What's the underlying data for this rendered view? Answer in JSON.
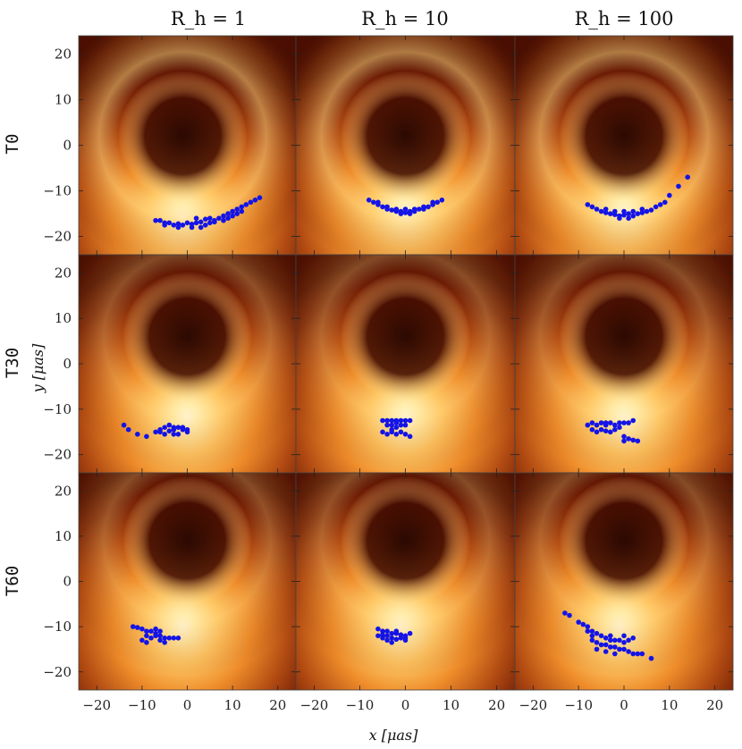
{
  "chart_data": {
    "type": "scatter",
    "title": "",
    "xlabel": "x [μas]",
    "ylabel": "y [μas]",
    "xlim": [
      -24,
      24
    ],
    "ylim": [
      -24,
      24
    ],
    "xticks": [
      -20,
      -10,
      0,
      10,
      20
    ],
    "yticks": [
      -20,
      -10,
      0,
      10,
      20
    ],
    "grid": false,
    "marker_color": "#1414e6",
    "column_titles": [
      "R_h = 1",
      "R_h = 10",
      "R_h = 100"
    ],
    "row_titles": [
      "T0",
      "T30",
      "T60"
    ],
    "panels": [
      {
        "row": 0,
        "col": 0,
        "ring_center": [
          -1,
          2
        ],
        "bright_center": [
          -1,
          -16
        ],
        "points": [
          [
            -7,
            -16.5
          ],
          [
            -6,
            -16.5
          ],
          [
            -5,
            -17
          ],
          [
            -4,
            -17
          ],
          [
            -3,
            -17.5
          ],
          [
            -2,
            -17.2
          ],
          [
            -1,
            -17.5
          ],
          [
            0,
            -17
          ],
          [
            1,
            -17.3
          ],
          [
            2,
            -17
          ],
          [
            3,
            -16.8
          ],
          [
            4,
            -17.5
          ],
          [
            5,
            -17
          ],
          [
            6,
            -16.5
          ],
          [
            7,
            -16
          ],
          [
            8,
            -15.5
          ],
          [
            9,
            -15
          ],
          [
            10,
            -14.5
          ],
          [
            11,
            -14
          ],
          [
            12,
            -13.5
          ],
          [
            13,
            -13
          ],
          [
            14,
            -12.5
          ],
          [
            15,
            -12
          ],
          [
            16,
            -11.5
          ],
          [
            2,
            -16
          ],
          [
            4,
            -16.2
          ],
          [
            6,
            -16.8
          ],
          [
            8,
            -16.5
          ],
          [
            10,
            -15.5
          ],
          [
            12,
            -14.5
          ],
          [
            -5,
            -17.5
          ],
          [
            1,
            -18
          ],
          [
            3,
            -18
          ],
          [
            -2,
            -18
          ],
          [
            5,
            -16
          ],
          [
            9,
            -16
          ],
          [
            11,
            -15
          ]
        ]
      },
      {
        "row": 0,
        "col": 1,
        "ring_center": [
          0,
          2
        ],
        "bright_center": [
          0,
          -15
        ],
        "points": [
          [
            -8,
            -12
          ],
          [
            -7,
            -12.5
          ],
          [
            -6,
            -13
          ],
          [
            -5,
            -13.5
          ],
          [
            -4,
            -14
          ],
          [
            -3,
            -14.2
          ],
          [
            -2,
            -14.5
          ],
          [
            -1,
            -14.5
          ],
          [
            0,
            -14.8
          ],
          [
            1,
            -14.5
          ],
          [
            2,
            -14.5
          ],
          [
            3,
            -14
          ],
          [
            4,
            -14
          ],
          [
            5,
            -13.5
          ],
          [
            6,
            -13
          ],
          [
            7,
            -12.5
          ],
          [
            8,
            -12
          ],
          [
            -4,
            -13.5
          ],
          [
            -2,
            -14
          ],
          [
            0,
            -14
          ],
          [
            2,
            -14
          ],
          [
            4,
            -13.5
          ],
          [
            -6,
            -12.5
          ],
          [
            6,
            -12.5
          ],
          [
            1,
            -15
          ],
          [
            -1,
            -15
          ]
        ]
      },
      {
        "row": 0,
        "col": 2,
        "ring_center": [
          0,
          2
        ],
        "bright_center": [
          0,
          -15
        ],
        "points": [
          [
            -8,
            -13
          ],
          [
            -7,
            -13.5
          ],
          [
            -6,
            -14
          ],
          [
            -5,
            -14.5
          ],
          [
            -4,
            -14.8
          ],
          [
            -3,
            -15
          ],
          [
            -2,
            -15.2
          ],
          [
            -1,
            -15.5
          ],
          [
            0,
            -15.3
          ],
          [
            1,
            -15
          ],
          [
            2,
            -15.5
          ],
          [
            3,
            -15
          ],
          [
            4,
            -14.8
          ],
          [
            5,
            -14.5
          ],
          [
            6,
            -14.2
          ],
          [
            7,
            -13.5
          ],
          [
            8,
            -13
          ],
          [
            9,
            -12.5
          ],
          [
            10,
            -11
          ],
          [
            12,
            -9
          ],
          [
            14,
            -7
          ],
          [
            -4,
            -14
          ],
          [
            -2,
            -14.5
          ],
          [
            0,
            -14.5
          ],
          [
            2,
            -14.5
          ],
          [
            4,
            -14
          ],
          [
            -1,
            -16
          ],
          [
            1,
            -16
          ]
        ]
      },
      {
        "row": 1,
        "col": 0,
        "ring_center": [
          0,
          6
        ],
        "bright_center": [
          0,
          -12
        ],
        "points": [
          [
            -14,
            -13.5
          ],
          [
            -13,
            -14.5
          ],
          [
            -11,
            -15.5
          ],
          [
            -9,
            -16
          ],
          [
            -7,
            -15
          ],
          [
            -6,
            -14.5
          ],
          [
            -5,
            -14
          ],
          [
            -4,
            -14.8
          ],
          [
            -3,
            -14.5
          ],
          [
            -2,
            -14
          ],
          [
            -1,
            -14.5
          ],
          [
            0,
            -15
          ],
          [
            -5,
            -15.5
          ],
          [
            -3,
            -15.5
          ],
          [
            -4,
            -13.5
          ],
          [
            -2,
            -15.5
          ],
          [
            -6,
            -15
          ],
          [
            -1,
            -14
          ],
          [
            0,
            -14.5
          ],
          [
            -3,
            -14
          ]
        ]
      },
      {
        "row": 1,
        "col": 1,
        "ring_center": [
          0,
          6
        ],
        "bright_center": [
          0,
          -12
        ],
        "points": [
          [
            -5,
            -12.5
          ],
          [
            -4,
            -12.5
          ],
          [
            -3,
            -12.5
          ],
          [
            -2,
            -12.5
          ],
          [
            -1,
            -12.5
          ],
          [
            0,
            -12.5
          ],
          [
            1,
            -12.5
          ],
          [
            -4,
            -13.5
          ],
          [
            -3,
            -13.5
          ],
          [
            -2,
            -14
          ],
          [
            -1,
            -13.5
          ],
          [
            0,
            -13.5
          ],
          [
            -5,
            -15
          ],
          [
            -4,
            -15.5
          ],
          [
            -3,
            -15
          ],
          [
            -2,
            -15.5
          ],
          [
            -1,
            -15
          ],
          [
            0,
            -15.5
          ],
          [
            1,
            -16
          ],
          [
            -3,
            -14.5
          ],
          [
            -2,
            -13
          ]
        ]
      },
      {
        "row": 1,
        "col": 2,
        "ring_center": [
          0,
          6
        ],
        "bright_center": [
          0,
          -12
        ],
        "points": [
          [
            -8,
            -13.5
          ],
          [
            -7,
            -13
          ],
          [
            -6,
            -13.5
          ],
          [
            -5,
            -13
          ],
          [
            -4,
            -13.5
          ],
          [
            -3,
            -13
          ],
          [
            -2,
            -13.5
          ],
          [
            -1,
            -13
          ],
          [
            0,
            -13
          ],
          [
            1,
            -13
          ],
          [
            2,
            -12.5
          ],
          [
            -7,
            -14.5
          ],
          [
            -6,
            -15
          ],
          [
            -5,
            -14.5
          ],
          [
            -4,
            -14.8
          ],
          [
            -3,
            -15
          ],
          [
            -2,
            -14.5
          ],
          [
            -1,
            -14
          ],
          [
            0,
            -16
          ],
          [
            1,
            -16.5
          ],
          [
            2,
            -16.8
          ],
          [
            3,
            -17
          ],
          [
            0,
            -17
          ],
          [
            -4,
            -13
          ]
        ]
      },
      {
        "row": 2,
        "col": 0,
        "ring_center": [
          0,
          9
        ],
        "bright_center": [
          -1,
          -10
        ],
        "points": [
          [
            -12,
            -10
          ],
          [
            -11,
            -10.2
          ],
          [
            -10,
            -10.5
          ],
          [
            -9,
            -11
          ],
          [
            -8,
            -11
          ],
          [
            -7,
            -11.5
          ],
          [
            -6,
            -12
          ],
          [
            -5,
            -12.5
          ],
          [
            -4,
            -12.5
          ],
          [
            -3,
            -12.5
          ],
          [
            -2,
            -12.5
          ],
          [
            -9,
            -12
          ],
          [
            -8,
            -12.5
          ],
          [
            -7,
            -12
          ],
          [
            -6,
            -13
          ],
          [
            -5,
            -13.5
          ],
          [
            -10,
            -13
          ],
          [
            -9,
            -13.5
          ],
          [
            -7,
            -10.5
          ],
          [
            -6,
            -11
          ]
        ]
      },
      {
        "row": 2,
        "col": 1,
        "ring_center": [
          0,
          9
        ],
        "bright_center": [
          -1,
          -10
        ],
        "points": [
          [
            -6,
            -10.5
          ],
          [
            -5,
            -11
          ],
          [
            -4,
            -11
          ],
          [
            -3,
            -11.5
          ],
          [
            -2,
            -11.5
          ],
          [
            -1,
            -11.8
          ],
          [
            0,
            -12
          ],
          [
            1,
            -11.5
          ],
          [
            -6,
            -12
          ],
          [
            -5,
            -12.5
          ],
          [
            -4,
            -12
          ],
          [
            -3,
            -12.5
          ],
          [
            -2,
            -12.8
          ],
          [
            -1,
            -12.5
          ],
          [
            0,
            -13
          ],
          [
            -4,
            -13
          ],
          [
            -3,
            -13.5
          ],
          [
            -5,
            -11.8
          ],
          [
            -2,
            -11
          ],
          [
            0,
            -12.5
          ]
        ]
      },
      {
        "row": 2,
        "col": 2,
        "ring_center": [
          0,
          9
        ],
        "bright_center": [
          -1,
          -10
        ],
        "points": [
          [
            -13,
            -7
          ],
          [
            -12,
            -7.5
          ],
          [
            -10,
            -9
          ],
          [
            -9,
            -9.5
          ],
          [
            -8,
            -10
          ],
          [
            -7,
            -11
          ],
          [
            -6,
            -11.5
          ],
          [
            -5,
            -12
          ],
          [
            -4,
            -12.5
          ],
          [
            -3,
            -13
          ],
          [
            -2,
            -13
          ],
          [
            -1,
            -13
          ],
          [
            0,
            -13.5
          ],
          [
            1,
            -13
          ],
          [
            2,
            -12.5
          ],
          [
            -7,
            -13
          ],
          [
            -6,
            -13.5
          ],
          [
            -5,
            -14
          ],
          [
            -4,
            -14
          ],
          [
            -3,
            -14.5
          ],
          [
            -2,
            -14.5
          ],
          [
            -1,
            -15
          ],
          [
            0,
            -15
          ],
          [
            1,
            -15.5
          ],
          [
            2,
            -16
          ],
          [
            3,
            -16
          ],
          [
            -6,
            -15
          ],
          [
            -4,
            -15.5
          ],
          [
            -2,
            -16
          ],
          [
            4,
            -16
          ],
          [
            6,
            -17
          ],
          [
            -8,
            -11
          ],
          [
            -7,
            -12
          ],
          [
            -3,
            -12
          ],
          [
            0,
            -12
          ]
        ]
      }
    ]
  }
}
